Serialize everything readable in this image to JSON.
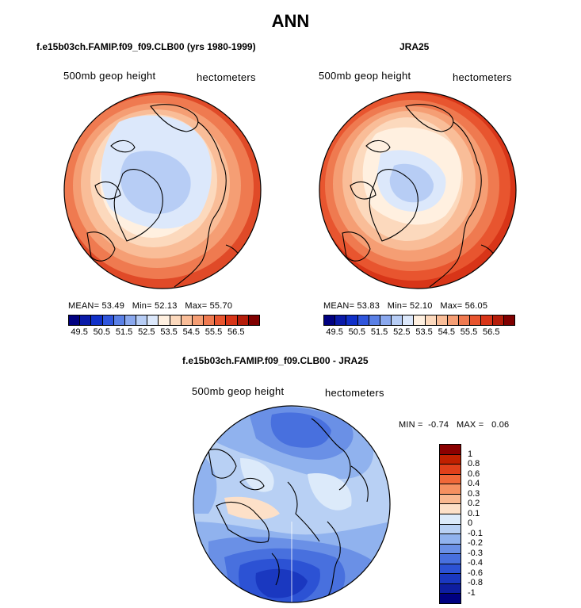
{
  "title": "ANN",
  "panels": [
    {
      "case_title": "f.e15b03ch.FAMIP.f09_f09.CLB00 (yrs 1980-1999)",
      "variable": "500mb geop height",
      "units": "hectometers",
      "mean_label": "MEAN=",
      "mean": "53.49",
      "min_label": "Min=",
      "min": "52.13",
      "max_label": "Max=",
      "max": "55.70"
    },
    {
      "case_title": "JRA25",
      "variable": "500mb geop height",
      "units": "hectometers",
      "mean_label": "MEAN=",
      "mean": "53.83",
      "min_label": "Min=",
      "min": "52.10",
      "max_label": "Max=",
      "max": "56.05"
    }
  ],
  "diff_panel": {
    "case_title": "f.e15b03ch.FAMIP.f09_f09.CLB00 - JRA25",
    "variable": "500mb geop height",
    "units": "hectometers",
    "min_label": "MIN =",
    "min": "-0.74",
    "max_label": "MAX =",
    "max": "0.06"
  },
  "colorbar_main": {
    "colors": [
      "#000080",
      "#0a1aa8",
      "#1030c8",
      "#2f55dc",
      "#5a80e6",
      "#8aa8ee",
      "#b7cdf5",
      "#dce8fb",
      "#fff0e0",
      "#fcd9bd",
      "#f9bd98",
      "#f59e74",
      "#ef7a50",
      "#e8552f",
      "#d83518",
      "#b51d0a",
      "#800000"
    ],
    "ticks": [
      "49.5",
      "50.5",
      "51.5",
      "52.5",
      "53.5",
      "54.5",
      "55.5",
      "56.5"
    ]
  },
  "colorbar_diff": {
    "colors": [
      "#8b0000",
      "#c02000",
      "#e0401a",
      "#f06838",
      "#f59060",
      "#f9b890",
      "#fde0c8",
      "#dceafa",
      "#b8d0f4",
      "#90b2ee",
      "#6a90e6",
      "#4870de",
      "#2c52d4",
      "#1a38c0",
      "#0e1ea0",
      "#000080"
    ],
    "ticks": [
      "1",
      "0.8",
      "0.6",
      "0.4",
      "0.3",
      "0.2",
      "0.1",
      "0",
      "-0.1",
      "-0.2",
      "-0.3",
      "-0.4",
      "-0.6",
      "-0.8",
      "-1"
    ]
  }
}
